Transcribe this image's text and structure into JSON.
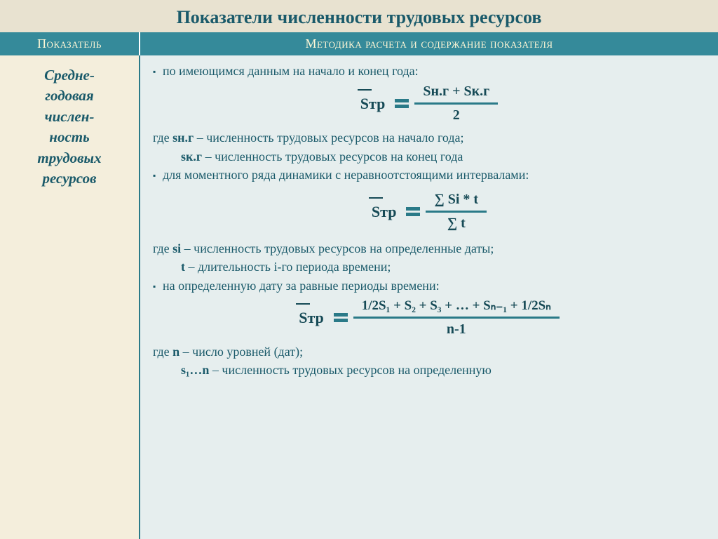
{
  "colors": {
    "title_bg": "#e8e2d0",
    "title_text": "#1a5a6a",
    "header_bg": "#358a9a",
    "header_text": "#fff7d6",
    "left_bg": "#f4eedc",
    "right_bg": "#e6eeee",
    "body_text": "#1a5a6a",
    "rule": "#2a7a88"
  },
  "title": "Показатели численности трудовых ресурсов",
  "header": {
    "left": "Показатель",
    "right": "Методика расчета и содержание показателя"
  },
  "left_col": {
    "l1": "Средне-",
    "l2": "годовая",
    "l3": "числен-",
    "l4": "ность",
    "l5": "трудовых",
    "l6": "ресурсов"
  },
  "content": {
    "b1": "по имеющимся данным на начало и конец года:",
    "f1": {
      "lhs": "Sтр",
      "num": "Sн.г  +  Sк.г",
      "den": "2"
    },
    "w1a_pre": "где ",
    "w1a_var": "sн.г",
    "w1a_rest": " – численность трудовых ресурсов на начало года;",
    "w1b_var": "sк.г",
    "w1b_rest": " – численность трудовых ресурсов на конец года",
    "b2": "для моментного ряда динамики с неравноотстоящими интервалами:",
    "f2": {
      "lhs": "Sтр",
      "num": "∑ Si * t",
      "den": "∑ t"
    },
    "w2a_pre": "где ",
    "w2a_var": "si",
    "w2a_rest": " – численность трудовых ресурсов на определенные даты;",
    "w2b_var": "t",
    "w2b_rest": " – длительность i-го периода времени;",
    "b3": "на определенную дату за равные периоды времени:",
    "f3": {
      "lhs": "Sтр",
      "num": "1/2S₁ + S₂ + S₃ + … + Sₙ₋₁ + 1/2Sₙ",
      "den": "n-1"
    },
    "w3a_pre": "где ",
    "w3a_var": "n",
    "w3a_rest": " – число уровней (дат);",
    "w3b_var": "s₁…n",
    "w3b_rest": " – численность трудовых ресурсов на определенную"
  }
}
